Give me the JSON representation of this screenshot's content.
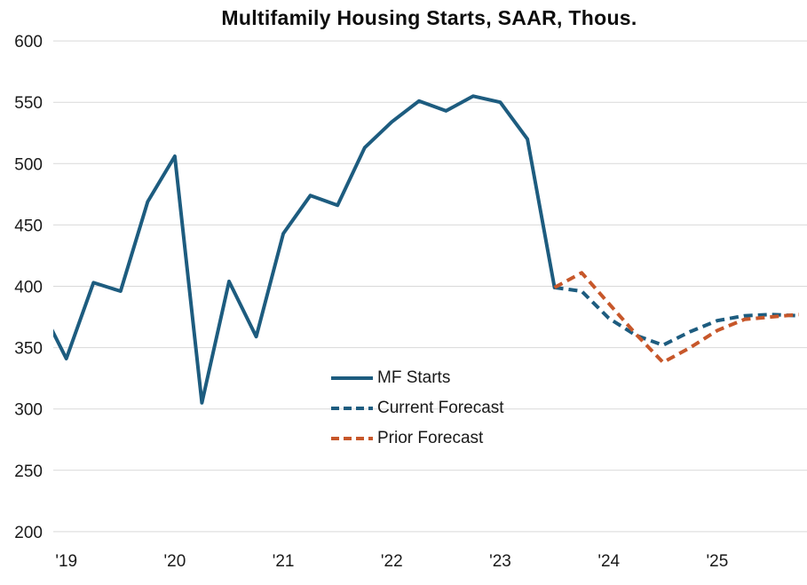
{
  "title": "Multifamily Housing Starts, SAAR, Thous.",
  "colors": {
    "series_blue": "#1d5c7f",
    "series_orange": "#c7572a",
    "gridline": "#d9d9d9",
    "tick_text": "#1a1a1a",
    "title_text": "#0d0d0d",
    "background": "#ffffff"
  },
  "legend": {
    "position": "inside-lower-middle",
    "items": [
      "MF Starts",
      "Current Forecast",
      "Prior Forecast"
    ]
  },
  "chart_data": {
    "type": "line",
    "title": "Multifamily Housing Starts, SAAR, Thous.",
    "xlabel": "",
    "ylabel": "",
    "ylim": [
      200,
      600
    ],
    "ytick_step": 50,
    "ytick_labels": [
      "200",
      "250",
      "300",
      "350",
      "400",
      "450",
      "500",
      "550",
      "600"
    ],
    "x_tick_labels": [
      "'19",
      "'20",
      "'21",
      "'22",
      "'23",
      "'24",
      "'25"
    ],
    "grid": "horizontal",
    "x_unit": "quarterly",
    "quarters": [
      "2018 Q4",
      "2019 Q1",
      "2019 Q2",
      "2019 Q3",
      "2019 Q4",
      "2020 Q1",
      "2020 Q2",
      "2020 Q3",
      "2020 Q4",
      "2021 Q1",
      "2021 Q2",
      "2021 Q3",
      "2021 Q4",
      "2022 Q1",
      "2022 Q2",
      "2022 Q3",
      "2022 Q4",
      "2023 Q1",
      "2023 Q2",
      "2023 Q3",
      "2023 Q4",
      "2024 Q1",
      "2024 Q2",
      "2024 Q3",
      "2024 Q4",
      "2025 Q1",
      "2025 Q2",
      "2025 Q3",
      "2025 Q4"
    ],
    "series": [
      {
        "name": "MF Starts",
        "dash": "solid",
        "color": "#1d5c7f",
        "values": [
          385,
          341,
          403,
          396,
          469,
          506,
          305,
          404,
          359,
          443,
          474,
          466,
          513,
          534,
          551,
          543,
          555,
          550,
          520,
          399,
          null,
          null,
          null,
          null,
          null,
          null,
          null,
          null,
          null
        ]
      },
      {
        "name": "Current Forecast",
        "dash": "dashed",
        "color": "#1d5c7f",
        "values": [
          null,
          null,
          null,
          null,
          null,
          null,
          null,
          null,
          null,
          null,
          null,
          null,
          null,
          null,
          null,
          null,
          null,
          null,
          null,
          399,
          396,
          374,
          360,
          352,
          363,
          372,
          376,
          377,
          376
        ]
      },
      {
        "name": "Prior Forecast",
        "dash": "dashed",
        "color": "#c7572a",
        "values": [
          null,
          null,
          null,
          null,
          null,
          null,
          null,
          null,
          null,
          null,
          null,
          null,
          null,
          null,
          null,
          null,
          null,
          null,
          null,
          399,
          411,
          386,
          361,
          338,
          350,
          364,
          373,
          375,
          377
        ]
      }
    ]
  }
}
